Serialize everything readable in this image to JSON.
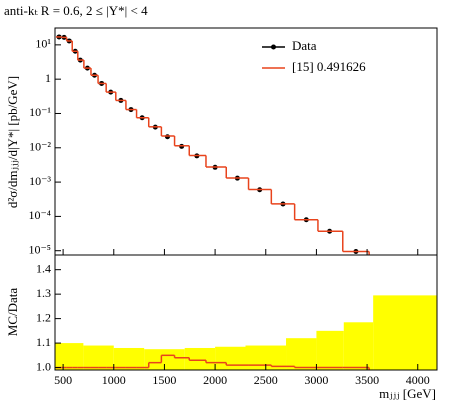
{
  "chart_data": [
    {
      "type": "histogram",
      "title": "anti-kₜ R = 0.6, 2 ≤ |Y*| < 4",
      "ylabel": "d²σ/dmⱼⱼⱼ/d|Y*| [pb/GeV]",
      "log_y": true,
      "xlim": [
        420,
        4190
      ],
      "ylim": [
        7.5e-06,
        31
      ],
      "xticks": [
        500,
        1000,
        1500,
        2000,
        2500,
        3000,
        3500,
        4000
      ],
      "yticks": [
        {
          "value": 1e-05,
          "label": "10⁻⁵"
        },
        {
          "value": 0.0001,
          "label": "10⁻⁴"
        },
        {
          "value": 0.001,
          "label": "10⁻³"
        },
        {
          "value": 0.01,
          "label": "10⁻²"
        },
        {
          "value": 0.1,
          "label": "10⁻¹"
        },
        1,
        {
          "value": 10,
          "label": "10¹"
        }
      ],
      "legend": "upper right",
      "series": [
        {
          "name": "Data",
          "color": "#000000",
          "x": [
            460,
            510,
            560,
            620,
            670,
            740,
            810,
            880,
            970,
            1070,
            1170,
            1280,
            1410,
            1530,
            1670,
            1820,
            2000,
            2220,
            2440,
            2670,
            2900,
            3130,
            3390
          ],
          "values": [
            17,
            16.5,
            13,
            6.5,
            3.6,
            2.1,
            1.3,
            0.75,
            0.42,
            0.24,
            0.13,
            0.075,
            0.04,
            0.021,
            0.011,
            0.0058,
            0.0027,
            0.0013,
            0.0006,
            0.00023,
            8e-05,
            3.7e-05,
            9.5e-06
          ]
        },
        {
          "name": "[15] 0.491626",
          "color": "#e8431c",
          "bins": [
            430,
            485,
            535,
            590,
            645,
            705,
            775,
            845,
            925,
            1020,
            1120,
            1225,
            1345,
            1470,
            1600,
            1745,
            1910,
            2110,
            2330,
            2555,
            2785,
            3015,
            3260,
            3520
          ],
          "values": [
            17,
            16.5,
            13,
            6.5,
            3.6,
            2.1,
            1.3,
            0.75,
            0.42,
            0.24,
            0.13,
            0.075,
            0.0408,
            0.02205,
            0.01144,
            0.005974,
            0.002754,
            0.001313,
            0.000606,
            0.00023115,
            8e-05,
            3.7e-05,
            9.5e-06
          ]
        }
      ]
    },
    {
      "type": "histogram",
      "ylabel": "MC/Data",
      "xlabel": "mⱼⱼⱼ [GeV]",
      "xlim": [
        420,
        4190
      ],
      "ylim": [
        0.99,
        1.46
      ],
      "xticks": [
        500,
        1000,
        1500,
        2000,
        2500,
        3000,
        3500,
        4000
      ],
      "yticks": [
        {
          "value": 1,
          "label": "1.0"
        },
        1.1,
        1.2,
        1.3,
        1.4
      ],
      "band": {
        "color": "#ffff00",
        "bins": [
          420,
          700,
          1000,
          1300,
          1700,
          2000,
          2300,
          2700,
          3000,
          3270,
          3560,
          4190
        ],
        "values": [
          1.1,
          1.09,
          1.08,
          1.075,
          1.08,
          1.085,
          1.09,
          1.12,
          1.15,
          1.185,
          1.295
        ]
      },
      "series": [
        {
          "color": "#e8431c",
          "bins": [
            430,
            485,
            535,
            590,
            645,
            705,
            775,
            845,
            925,
            1020,
            1120,
            1225,
            1345,
            1470,
            1600,
            1745,
            1910,
            2110,
            2330,
            2555,
            2785,
            3015,
            3260,
            3520
          ],
          "values": [
            1,
            1,
            1,
            1,
            1,
            1,
            1,
            1,
            1,
            1,
            1,
            1,
            1.02,
            1.05,
            1.04,
            1.03,
            1.02,
            1.01,
            1.01,
            1.005,
            1,
            1,
            1
          ]
        }
      ]
    }
  ]
}
